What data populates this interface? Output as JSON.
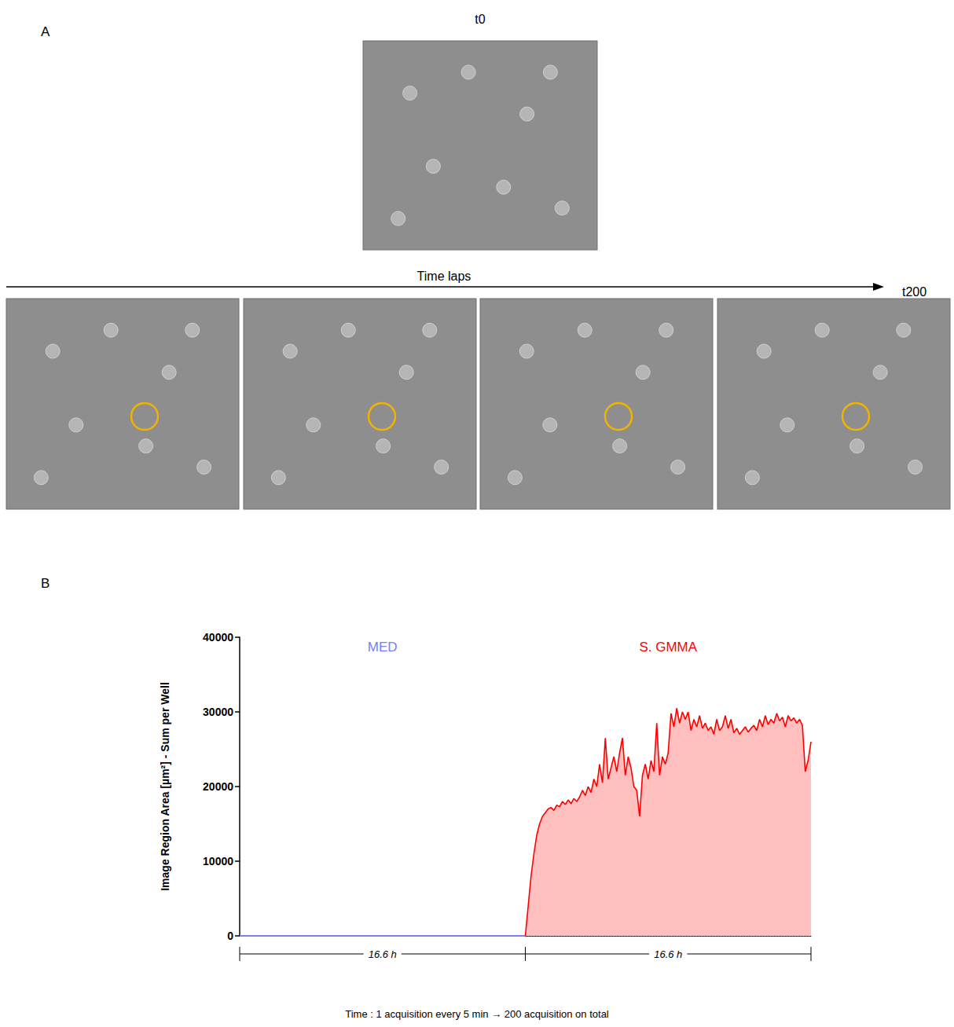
{
  "panel_a": {
    "letter": "A",
    "first_label": "t0",
    "arrow_label": "Time laps",
    "last_label": "t200"
  },
  "chart_data": {
    "type": "line",
    "panel_letter": "B",
    "ylabel": "Image Region Area [µm²] - Sum per Well",
    "xlabel": "Time : 1 acquisition every 5 min → 200 acquisition on total",
    "xlim": [
      0,
      400
    ],
    "ylim": [
      0,
      40000
    ],
    "yticks": [
      0,
      10000,
      20000,
      30000,
      40000
    ],
    "tick_labels": "y",
    "grid": false,
    "brackets": [
      {
        "from": 0,
        "to": 200,
        "label": "16.6 h"
      },
      {
        "from": 200,
        "to": 400,
        "label": "16.6 h"
      }
    ],
    "series": [
      {
        "name": "MED",
        "color": "#7b7bff",
        "type": "line",
        "x": [
          0,
          20,
          40,
          60,
          80,
          100,
          120,
          140,
          160,
          180,
          200
        ],
        "values": [
          0,
          0,
          0,
          0,
          0,
          0,
          0,
          0,
          0,
          0,
          0
        ]
      },
      {
        "name": "S. GMMA",
        "color": "#ff0000",
        "type": "area",
        "x": [
          200,
          202,
          204,
          206,
          208,
          210,
          212,
          214,
          216,
          218,
          220,
          222,
          224,
          226,
          228,
          230,
          232,
          234,
          236,
          238,
          240,
          242,
          244,
          246,
          248,
          250,
          252,
          254,
          256,
          258,
          260,
          262,
          264,
          266,
          268,
          270,
          272,
          274,
          276,
          278,
          280,
          282,
          284,
          286,
          288,
          290,
          292,
          294,
          296,
          298,
          300,
          302,
          304,
          306,
          308,
          310,
          312,
          314,
          316,
          318,
          320,
          322,
          324,
          326,
          328,
          330,
          332,
          334,
          336,
          338,
          340,
          342,
          344,
          346,
          348,
          350,
          352,
          354,
          356,
          358,
          360,
          362,
          364,
          366,
          368,
          370,
          372,
          374,
          376,
          378,
          380,
          382,
          384,
          386,
          388,
          390,
          392,
          394,
          396,
          398,
          400
        ],
        "values": [
          0,
          4000,
          8000,
          11000,
          13500,
          15000,
          16000,
          16500,
          17000,
          17200,
          16800,
          17500,
          17300,
          18000,
          17600,
          18200,
          17700,
          18400,
          18000,
          18600,
          19500,
          18800,
          20000,
          19200,
          21000,
          20000,
          23000,
          20500,
          26500,
          21000,
          22500,
          24000,
          22000,
          24500,
          26500,
          21500,
          24000,
          22500,
          20000,
          19500,
          16000,
          21500,
          23000,
          21000,
          23500,
          22000,
          28500,
          21500,
          24000,
          23000,
          24500,
          29800,
          28000,
          30500,
          28500,
          30000,
          29000,
          30000,
          27500,
          29000,
          28000,
          29500,
          27800,
          28500,
          27500,
          28000,
          27000,
          29000,
          27500,
          28000,
          29500,
          27800,
          29000,
          27200,
          27800,
          27000,
          27500,
          28000,
          27300,
          27800,
          28200,
          27500,
          29000,
          28000,
          29500,
          28300,
          29000,
          28500,
          29800,
          28800,
          29300,
          28000,
          29500,
          28800,
          29200,
          28500,
          29000,
          28200,
          22000,
          23500,
          26000
        ]
      }
    ]
  }
}
